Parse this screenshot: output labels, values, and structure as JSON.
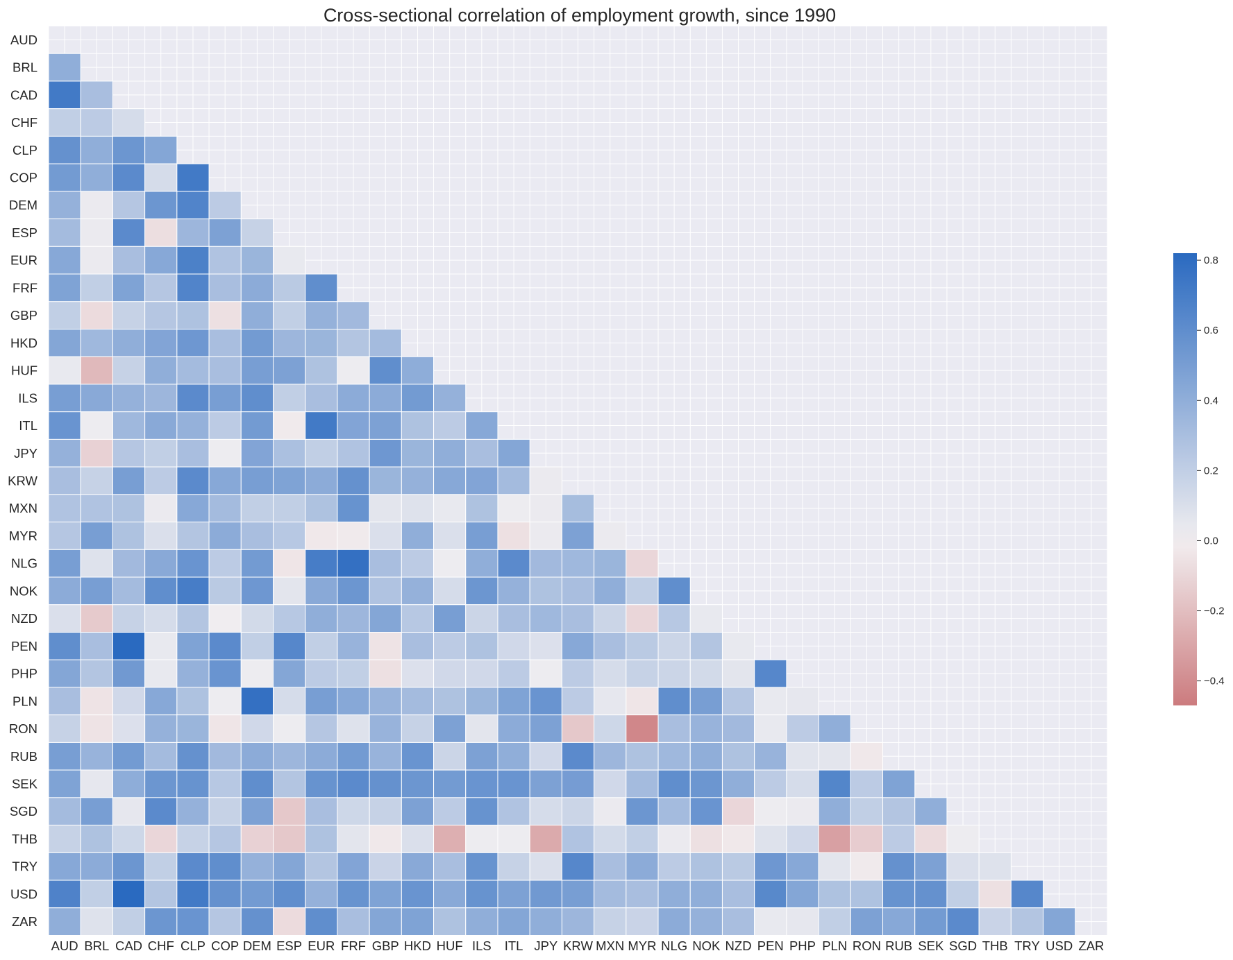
{
  "chart_data": {
    "type": "heatmap",
    "title": "Cross-sectional correlation of employment growth, since 1990",
    "xlabel": "",
    "ylabel": "",
    "labels": [
      "AUD",
      "BRL",
      "CAD",
      "CHF",
      "CLP",
      "COP",
      "DEM",
      "ESP",
      "EUR",
      "FRF",
      "GBP",
      "HKD",
      "HUF",
      "ILS",
      "ITL",
      "JPY",
      "KRW",
      "MXN",
      "MYR",
      "NLG",
      "NOK",
      "NZD",
      "PEN",
      "PHP",
      "PLN",
      "RON",
      "RUB",
      "SEK",
      "SGD",
      "THB",
      "TRY",
      "USD",
      "ZAR"
    ],
    "mask": "upper-triangle-and-diagonal",
    "colorbar": {
      "range": [
        -0.47,
        0.82
      ],
      "ticks": [
        "0.8",
        "0.6",
        "0.4",
        "0.2",
        "0.0",
        "−0.2",
        "−0.4"
      ],
      "tick_values": [
        0.8,
        0.6,
        0.4,
        0.2,
        0.0,
        -0.2,
        -0.4
      ],
      "color_low": "#cc7b7e",
      "color_mid": "#f2eff1",
      "color_high": "#2a6ac0"
    },
    "background": "#eaeaf2",
    "grid": true,
    "lower_triangle": [
      [],
      [
        0.4
      ],
      [
        0.72,
        0.3
      ],
      [
        0.2,
        0.22,
        0.12
      ],
      [
        0.58,
        0.4,
        0.55,
        0.45
      ],
      [
        0.52,
        0.4,
        0.62,
        0.12,
        0.72
      ],
      [
        0.38,
        0.03,
        0.25,
        0.55,
        0.66,
        0.22
      ],
      [
        0.32,
        0.03,
        0.62,
        -0.07,
        0.35,
        0.48,
        0.18
      ],
      [
        0.44,
        0.03,
        0.3,
        0.44,
        0.68,
        0.27,
        0.36,
        0.04
      ],
      [
        0.47,
        0.2,
        0.47,
        0.25,
        0.66,
        0.3,
        0.42,
        0.23,
        0.6
      ],
      [
        0.2,
        -0.08,
        0.18,
        0.25,
        0.28,
        -0.06,
        0.4,
        0.2,
        0.38,
        0.33
      ],
      [
        0.45,
        0.34,
        0.4,
        0.46,
        0.54,
        0.3,
        0.52,
        0.35,
        0.36,
        0.26,
        0.32
      ],
      [
        0.04,
        -0.22,
        0.18,
        0.4,
        0.32,
        0.3,
        0.5,
        0.48,
        0.28,
        0.02,
        0.6,
        0.41
      ],
      [
        0.5,
        0.43,
        0.38,
        0.35,
        0.62,
        0.5,
        0.6,
        0.2,
        0.3,
        0.42,
        0.42,
        0.52,
        0.38
      ],
      [
        0.56,
        0.02,
        0.34,
        0.43,
        0.38,
        0.22,
        0.52,
        -0.02,
        0.72,
        0.46,
        0.48,
        0.28,
        0.22,
        0.44
      ],
      [
        0.38,
        -0.12,
        0.25,
        0.2,
        0.3,
        0.02,
        0.46,
        0.29,
        0.2,
        0.27,
        0.54,
        0.36,
        0.4,
        0.3,
        0.45
      ],
      [
        0.3,
        0.18,
        0.5,
        0.22,
        0.62,
        0.44,
        0.5,
        0.47,
        0.42,
        0.58,
        0.36,
        0.38,
        0.44,
        0.46,
        0.32,
        0.03
      ],
      [
        0.27,
        0.27,
        0.28,
        0.03,
        0.44,
        0.32,
        0.2,
        0.2,
        0.28,
        0.57,
        0.06,
        0.08,
        0.04,
        0.28,
        0.02,
        0.03,
        0.31
      ],
      [
        0.25,
        0.5,
        0.28,
        0.1,
        0.26,
        0.42,
        0.3,
        0.24,
        -0.03,
        -0.02,
        0.1,
        0.4,
        0.1,
        0.5,
        -0.06,
        0.03,
        0.48,
        0.03
      ],
      [
        0.5,
        0.08,
        0.33,
        0.43,
        0.56,
        0.22,
        0.52,
        -0.04,
        0.7,
        0.78,
        0.3,
        0.22,
        0.02,
        0.4,
        0.62,
        0.33,
        0.34,
        0.36,
        -0.1
      ],
      [
        0.42,
        0.5,
        0.32,
        0.6,
        0.7,
        0.23,
        0.54,
        0.06,
        0.43,
        0.55,
        0.27,
        0.38,
        0.12,
        0.55,
        0.38,
        0.28,
        0.3,
        0.4,
        0.2,
        0.6
      ],
      [
        0.1,
        -0.15,
        0.18,
        0.12,
        0.26,
        0.01,
        0.13,
        0.24,
        0.4,
        0.35,
        0.45,
        0.24,
        0.5,
        0.16,
        0.3,
        0.34,
        0.3,
        0.16,
        -0.1,
        0.24,
        0.04
      ],
      [
        0.6,
        0.3,
        0.82,
        0.04,
        0.47,
        0.62,
        0.2,
        0.64,
        0.2,
        0.37,
        -0.05,
        0.3,
        0.22,
        0.28,
        0.14,
        0.09,
        0.44,
        0.3,
        0.23,
        0.16,
        0.26,
        0.04
      ],
      [
        0.45,
        0.26,
        0.53,
        0.04,
        0.38,
        0.56,
        0.02,
        0.45,
        0.22,
        0.2,
        -0.06,
        0.09,
        0.14,
        0.14,
        0.22,
        0.02,
        0.22,
        0.12,
        0.18,
        0.16,
        0.13,
        0.06,
        0.64
      ],
      [
        0.3,
        -0.05,
        0.14,
        0.44,
        0.28,
        0.02,
        0.78,
        0.12,
        0.5,
        0.44,
        0.37,
        0.32,
        0.28,
        0.36,
        0.47,
        0.56,
        0.22,
        0.05,
        -0.04,
        0.6,
        0.5,
        0.25,
        0.04,
        0.05
      ],
      [
        0.18,
        -0.05,
        0.09,
        0.38,
        0.36,
        -0.04,
        0.14,
        0.02,
        0.25,
        0.08,
        0.37,
        0.18,
        0.48,
        0.06,
        0.42,
        0.48,
        -0.16,
        0.15,
        -0.42,
        0.3,
        0.37,
        0.33,
        0.04,
        0.22,
        0.4
      ],
      [
        0.5,
        0.37,
        0.52,
        0.32,
        0.58,
        0.33,
        0.42,
        0.35,
        0.42,
        0.52,
        0.37,
        0.56,
        0.16,
        0.48,
        0.4,
        0.14,
        0.62,
        0.35,
        0.28,
        0.34,
        0.4,
        0.28,
        0.37,
        0.07,
        0.06,
        -0.03
      ],
      [
        0.47,
        0.05,
        0.41,
        0.55,
        0.57,
        0.24,
        0.6,
        0.26,
        0.57,
        0.62,
        0.58,
        0.55,
        0.52,
        0.56,
        0.56,
        0.48,
        0.51,
        0.14,
        0.32,
        0.6,
        0.55,
        0.4,
        0.22,
        0.12,
        0.65,
        0.22,
        0.47
      ],
      [
        0.32,
        0.5,
        0.05,
        0.62,
        0.38,
        0.18,
        0.48,
        -0.16,
        0.3,
        0.15,
        0.18,
        0.48,
        0.22,
        0.57,
        0.27,
        0.12,
        0.16,
        0.03,
        0.55,
        0.32,
        0.56,
        -0.1,
        0.02,
        0.03,
        0.4,
        0.2,
        0.26,
        0.4
      ],
      [
        0.18,
        0.28,
        0.15,
        -0.1,
        0.18,
        0.25,
        -0.12,
        -0.16,
        0.28,
        0.06,
        -0.03,
        0.1,
        -0.26,
        0.02,
        0.02,
        -0.28,
        0.27,
        0.13,
        0.2,
        0.03,
        -0.06,
        -0.03,
        0.08,
        0.14,
        -0.32,
        -0.14,
        0.22,
        -0.08,
        0.02
      ],
      [
        0.44,
        0.42,
        0.55,
        0.2,
        0.62,
        0.6,
        0.38,
        0.45,
        0.26,
        0.46,
        0.17,
        0.43,
        0.3,
        0.57,
        0.18,
        0.1,
        0.64,
        0.3,
        0.42,
        0.22,
        0.28,
        0.23,
        0.54,
        0.44,
        0.06,
        -0.02,
        0.58,
        0.48,
        0.1,
        0.08
      ],
      [
        0.67,
        0.2,
        0.82,
        0.26,
        0.72,
        0.58,
        0.52,
        0.6,
        0.38,
        0.57,
        0.47,
        0.56,
        0.43,
        0.57,
        0.48,
        0.53,
        0.5,
        0.32,
        0.3,
        0.4,
        0.4,
        0.3,
        0.63,
        0.45,
        0.28,
        0.28,
        0.57,
        0.58,
        0.2,
        -0.06,
        0.64
      ],
      [
        0.4,
        0.08,
        0.2,
        0.55,
        0.56,
        0.25,
        0.58,
        -0.08,
        0.6,
        0.3,
        0.45,
        0.47,
        0.28,
        0.4,
        0.45,
        0.4,
        0.35,
        0.18,
        0.17,
        0.42,
        0.38,
        0.3,
        0.04,
        0.05,
        0.2,
        0.48,
        0.44,
        0.52,
        0.62,
        0.17,
        0.26,
        0.45
      ]
    ]
  }
}
